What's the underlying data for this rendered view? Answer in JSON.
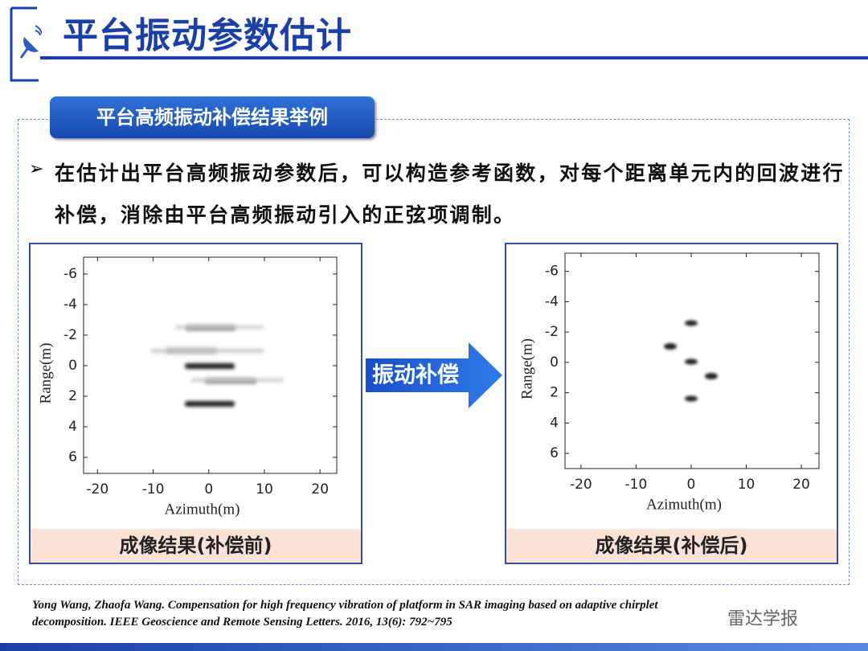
{
  "header": {
    "title": "平台振动参数估计"
  },
  "section": {
    "tab": "平台高频振动补偿结果举例",
    "bullet_lines": [
      "在估计出平台高频振动参数后，可以构造参考函数，对每个距离单元内的回波进行",
      "补偿，消除由平台高频振动引入的正弦项调制。"
    ]
  },
  "arrow_label": "振动补偿",
  "figures": [
    {
      "xlabel": "Azimuth(m)",
      "ylabel": "Range(m)",
      "xlim": [
        -22.5,
        23
      ],
      "ylim": [
        -7.1,
        7.05
      ],
      "xticks": [
        -20,
        -10,
        0,
        10,
        20
      ],
      "yticks": [
        -6,
        -4,
        -2,
        0,
        2,
        4,
        6
      ],
      "caption": "成像结果(补偿前)"
    },
    {
      "xlabel": "Azimuth(m)",
      "ylabel": "Range(m)",
      "xlim": [
        -22.9,
        23.2
      ],
      "ylim": [
        -7.2,
        7
      ],
      "xticks": [
        -20,
        -10,
        0,
        10,
        20
      ],
      "yticks": [
        -6,
        -4,
        -2,
        0,
        2,
        4,
        6
      ],
      "caption": "成像结果(补偿后)"
    }
  ],
  "citation": {
    "lines": [
      "Yong Wang, Zhaofa Wang. Compensation for high frequency vibration of platform in SAR imaging based on adaptive chirplet",
      "decomposition. IEEE Geoscience and Remote Sensing Letters. 2016, 13(6): 792~795"
    ]
  },
  "watermark": "雷达学报"
}
